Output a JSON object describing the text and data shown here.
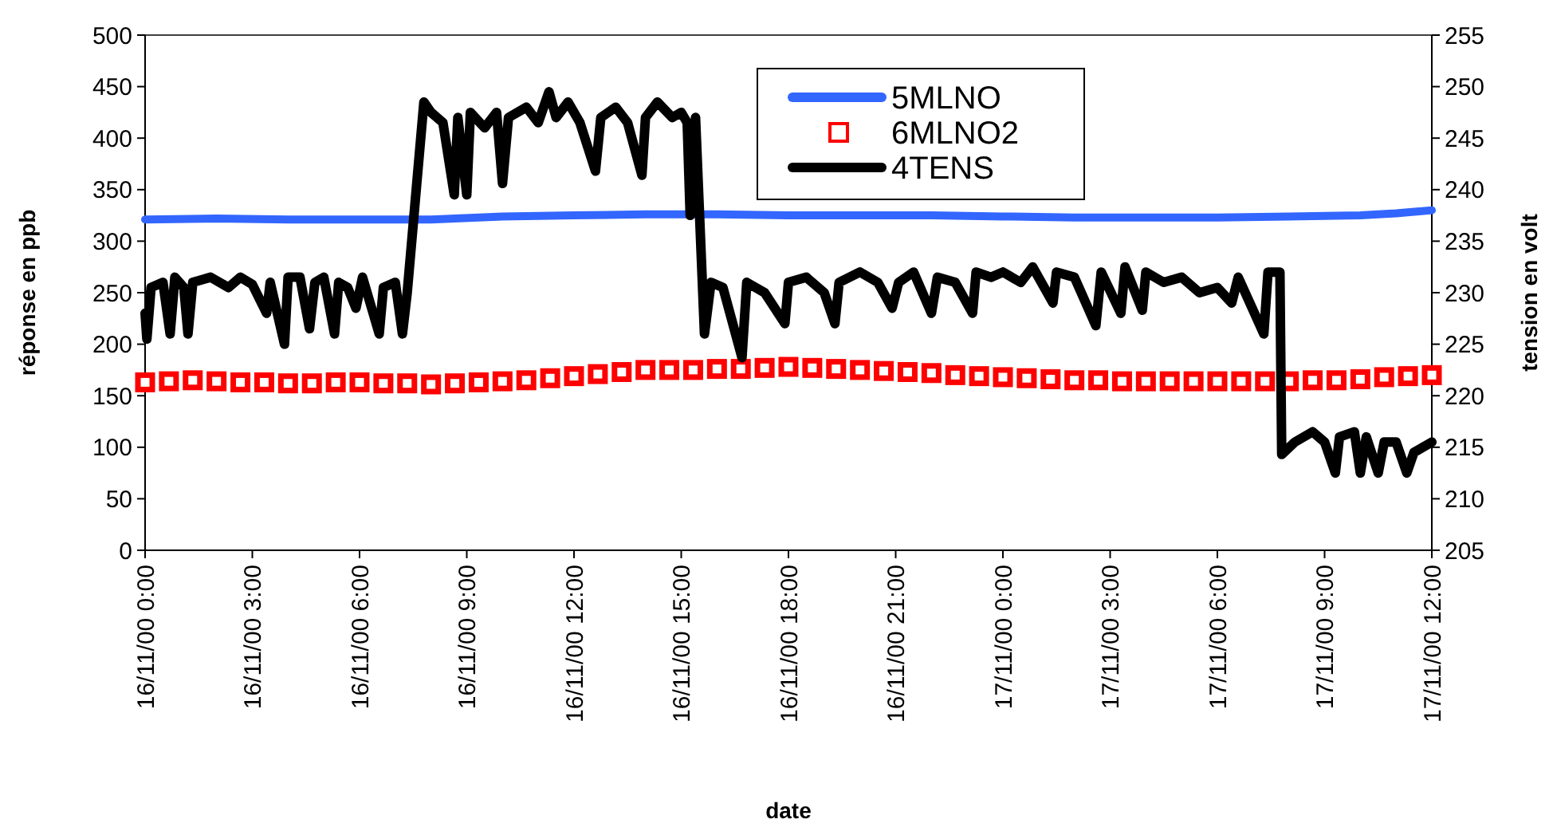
{
  "chart_data": {
    "type": "line",
    "xlabel": "date",
    "ylabel": "réponse en ppb",
    "y2label": "tension en volt",
    "xlim": [
      "2000-11-16T00:00",
      "2000-11-17T12:00"
    ],
    "xticks": [
      {
        "value": "2000-11-16T00:00",
        "label": "16/11/00 0:00"
      },
      {
        "value": "2000-11-16T03:00",
        "label": "16/11/00 3:00"
      },
      {
        "value": "2000-11-16T06:00",
        "label": "16/11/00 6:00"
      },
      {
        "value": "2000-11-16T09:00",
        "label": "16/11/00 9:00"
      },
      {
        "value": "2000-11-16T12:00",
        "label": "16/11/00 12:00"
      },
      {
        "value": "2000-11-16T15:00",
        "label": "16/11/00 15:00"
      },
      {
        "value": "2000-11-16T18:00",
        "label": "16/11/00 18:00"
      },
      {
        "value": "2000-11-16T21:00",
        "label": "16/11/00 21:00"
      },
      {
        "value": "2000-11-17T00:00",
        "label": "17/11/00 0:00"
      },
      {
        "value": "2000-11-17T03:00",
        "label": "17/11/00 3:00"
      },
      {
        "value": "2000-11-17T06:00",
        "label": "17/11/00 6:00"
      },
      {
        "value": "2000-11-17T09:00",
        "label": "17/11/00 9:00"
      },
      {
        "value": "2000-11-17T12:00",
        "label": "17/11/00 12:00"
      }
    ],
    "ylim": [
      0,
      500
    ],
    "yticks": [
      0,
      50,
      100,
      150,
      200,
      250,
      300,
      350,
      400,
      450,
      500
    ],
    "y2lim": [
      205,
      255
    ],
    "y2ticks": [
      205,
      210,
      215,
      220,
      225,
      230,
      235,
      240,
      245,
      250,
      255
    ],
    "grid": false,
    "legend": "top",
    "marker": "none",
    "series": [
      {
        "name": "5MLNO",
        "color": "#3366ff",
        "x": [
          "2000-11-16T00:00",
          "2000-11-16T02:00",
          "2000-11-16T04:00",
          "2000-11-16T06:00",
          "2000-11-16T08:00",
          "2000-11-16T10:00",
          "2000-11-16T12:00",
          "2000-11-16T14:00",
          "2000-11-16T16:00",
          "2000-11-16T18:00",
          "2000-11-16T20:00",
          "2000-11-16T22:00",
          "2000-11-17T00:00",
          "2000-11-17T02:00",
          "2000-11-17T04:00",
          "2000-11-17T06:00",
          "2000-11-17T08:00",
          "2000-11-17T10:00",
          "2000-11-17T11:00",
          "2000-11-17T12:00"
        ],
        "values": [
          321,
          322,
          321,
          321,
          321,
          324,
          325,
          326,
          326,
          325,
          325,
          325,
          324,
          323,
          323,
          323,
          324,
          325,
          327,
          330
        ]
      },
      {
        "name": "6MLNO2",
        "color": "#ff0000",
        "type": "scatter",
        "marker": "square",
        "x": [
          "2000-11-16T00:00",
          "2000-11-16T00:40",
          "2000-11-16T01:20",
          "2000-11-16T02:00",
          "2000-11-16T02:40",
          "2000-11-16T03:20",
          "2000-11-16T04:00",
          "2000-11-16T04:40",
          "2000-11-16T05:20",
          "2000-11-16T06:00",
          "2000-11-16T06:40",
          "2000-11-16T07:20",
          "2000-11-16T08:00",
          "2000-11-16T08:40",
          "2000-11-16T09:20",
          "2000-11-16T10:00",
          "2000-11-16T10:40",
          "2000-11-16T11:20",
          "2000-11-16T12:00",
          "2000-11-16T12:40",
          "2000-11-16T13:20",
          "2000-11-16T14:00",
          "2000-11-16T14:40",
          "2000-11-16T15:20",
          "2000-11-16T16:00",
          "2000-11-16T16:40",
          "2000-11-16T17:20",
          "2000-11-16T18:00",
          "2000-11-16T18:40",
          "2000-11-16T19:20",
          "2000-11-16T20:00",
          "2000-11-16T20:40",
          "2000-11-16T21:20",
          "2000-11-16T22:00",
          "2000-11-16T22:40",
          "2000-11-16T23:20",
          "2000-11-17T00:00",
          "2000-11-17T00:40",
          "2000-11-17T01:20",
          "2000-11-17T02:00",
          "2000-11-17T02:40",
          "2000-11-17T03:20",
          "2000-11-17T04:00",
          "2000-11-17T04:40",
          "2000-11-17T05:20",
          "2000-11-17T06:00",
          "2000-11-17T06:40",
          "2000-11-17T07:20",
          "2000-11-17T08:00",
          "2000-11-17T08:40",
          "2000-11-17T09:20",
          "2000-11-17T10:00",
          "2000-11-17T10:40",
          "2000-11-17T11:20",
          "2000-11-17T12:00"
        ],
        "values": [
          163,
          164,
          165,
          164,
          163,
          163,
          162,
          162,
          163,
          163,
          162,
          162,
          161,
          162,
          163,
          164,
          165,
          167,
          169,
          171,
          173,
          175,
          175,
          175,
          176,
          176,
          177,
          178,
          177,
          176,
          175,
          174,
          173,
          172,
          170,
          169,
          168,
          167,
          166,
          165,
          165,
          164,
          164,
          164,
          164,
          164,
          164,
          164,
          164,
          165,
          165,
          166,
          168,
          169,
          170
        ]
      },
      {
        "name": "4TENS",
        "color": "#000000",
        "axis": "y2",
        "x": [
          "2000-11-16T00:00",
          "2000-11-16T00:03",
          "2000-11-16T00:10",
          "2000-11-16T00:30",
          "2000-11-16T00:42",
          "2000-11-16T00:50",
          "2000-11-16T01:05",
          "2000-11-16T01:12",
          "2000-11-16T01:20",
          "2000-11-16T01:50",
          "2000-11-16T02:20",
          "2000-11-16T02:40",
          "2000-11-16T03:00",
          "2000-11-16T03:24",
          "2000-11-16T03:30",
          "2000-11-16T03:54",
          "2000-11-16T04:00",
          "2000-11-16T04:20",
          "2000-11-16T04:36",
          "2000-11-16T04:45",
          "2000-11-16T05:00",
          "2000-11-16T05:18",
          "2000-11-16T05:25",
          "2000-11-16T05:40",
          "2000-11-16T05:54",
          "2000-11-16T06:05",
          "2000-11-16T06:33",
          "2000-11-16T06:40",
          "2000-11-16T07:00",
          "2000-11-16T07:12",
          "2000-11-16T07:20",
          "2000-11-16T07:48",
          "2000-11-16T08:00",
          "2000-11-16T08:20",
          "2000-11-16T08:39",
          "2000-11-16T08:45",
          "2000-11-16T09:00",
          "2000-11-16T09:06",
          "2000-11-16T09:30",
          "2000-11-16T09:50",
          "2000-11-16T10:00",
          "2000-11-16T10:10",
          "2000-11-16T10:40",
          "2000-11-16T11:00",
          "2000-11-16T11:18",
          "2000-11-16T11:30",
          "2000-11-16T11:50",
          "2000-11-16T12:10",
          "2000-11-16T12:36",
          "2000-11-16T12:45",
          "2000-11-16T13:10",
          "2000-11-16T13:30",
          "2000-11-16T13:54",
          "2000-11-16T14:00",
          "2000-11-16T14:20",
          "2000-11-16T14:45",
          "2000-11-16T15:00",
          "2000-11-16T15:10",
          "2000-11-16T15:15",
          "2000-11-16T15:24",
          "2000-11-16T15:39",
          "2000-11-16T15:50",
          "2000-11-16T16:10",
          "2000-11-16T16:42",
          "2000-11-16T16:50",
          "2000-11-16T17:20",
          "2000-11-16T17:54",
          "2000-11-16T18:00",
          "2000-11-16T18:30",
          "2000-11-16T19:00",
          "2000-11-16T19:18",
          "2000-11-16T19:25",
          "2000-11-16T20:00",
          "2000-11-16T20:30",
          "2000-11-16T20:54",
          "2000-11-16T21:05",
          "2000-11-16T21:30",
          "2000-11-16T22:00",
          "2000-11-16T22:10",
          "2000-11-16T22:40",
          "2000-11-16T23:09",
          "2000-11-16T23:15",
          "2000-11-16T23:40",
          "2000-11-17T00:00",
          "2000-11-17T00:30",
          "2000-11-17T00:50",
          "2000-11-17T01:24",
          "2000-11-17T01:30",
          "2000-11-17T02:00",
          "2000-11-17T02:36",
          "2000-11-17T02:45",
          "2000-11-17T03:18",
          "2000-11-17T03:25",
          "2000-11-17T03:54",
          "2000-11-17T04:00",
          "2000-11-17T04:30",
          "2000-11-17T05:00",
          "2000-11-17T05:30",
          "2000-11-17T06:00",
          "2000-11-17T06:24",
          "2000-11-17T06:35",
          "2000-11-17T07:18",
          "2000-11-17T07:25",
          "2000-11-17T07:45",
          "2000-11-17T07:48",
          "2000-11-17T08:10",
          "2000-11-17T08:40",
          "2000-11-17T09:00",
          "2000-11-17T09:18",
          "2000-11-17T09:25",
          "2000-11-17T09:50",
          "2000-11-17T10:00",
          "2000-11-17T10:10",
          "2000-11-17T10:30",
          "2000-11-17T10:40",
          "2000-11-17T11:00",
          "2000-11-17T11:18",
          "2000-11-17T11:30",
          "2000-11-17T12:00"
        ],
        "values": [
          228,
          225.5,
          230.5,
          231,
          226,
          231.5,
          230.5,
          226,
          231,
          231.5,
          230.5,
          231.5,
          230.8,
          228,
          231,
          225,
          231.5,
          231.5,
          226.5,
          231,
          231.5,
          226,
          231,
          230.5,
          228.5,
          231.5,
          226,
          230.5,
          231,
          226,
          230,
          248.5,
          247.5,
          246.5,
          239.5,
          247,
          239.5,
          247.5,
          246,
          247.5,
          240.6,
          247,
          248,
          246.5,
          249.5,
          247,
          248.5,
          246.5,
          241.8,
          247,
          248,
          246.5,
          241.4,
          247,
          248.5,
          247,
          247.5,
          246.5,
          237.5,
          247,
          226,
          231,
          230.5,
          223.7,
          231,
          230,
          227,
          231,
          231.5,
          230,
          227,
          231,
          232,
          231,
          228.5,
          231,
          232,
          228,
          231.5,
          231,
          228,
          232,
          231.5,
          232,
          231,
          232.5,
          229,
          232,
          231.5,
          226.8,
          232,
          228,
          232.5,
          228.3,
          232,
          231,
          231.5,
          230,
          230.5,
          229,
          231.5,
          226,
          232,
          232,
          214.3,
          215.5,
          216.5,
          215.5,
          212.5,
          216,
          216.5,
          212.5,
          216,
          212.5,
          215.5,
          215.5,
          212.5,
          214.5,
          215.5
        ]
      }
    ]
  }
}
